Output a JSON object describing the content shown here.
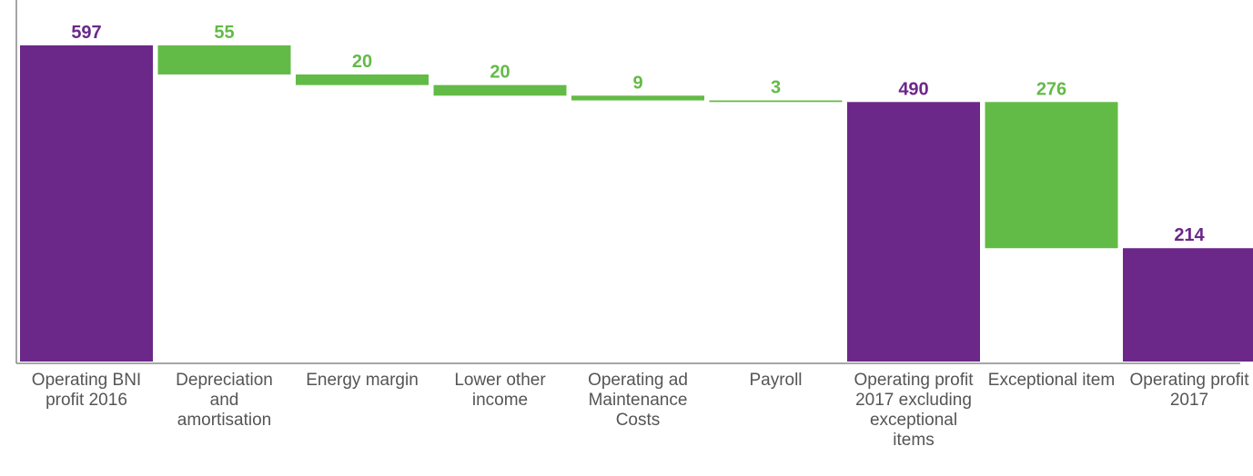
{
  "chart_data": {
    "type": "waterfall",
    "categories": [
      "Operating BNI profit 2016",
      "Depreciation and amortisation",
      "Energy margin",
      "Lower other income",
      "Operating ad Maintenance Costs",
      "Payroll",
      "Operating profit 2017 excluding exceptional items",
      "Exceptional item",
      "Operating profit 2017"
    ],
    "values": [
      597,
      55,
      20,
      20,
      9,
      3,
      490,
      276,
      214
    ],
    "measures": [
      "total",
      "decrease",
      "decrease",
      "decrease",
      "decrease",
      "decrease",
      "total",
      "decrease",
      "total"
    ],
    "colors": {
      "total": "#6b2889",
      "decrease": "#63bb47"
    },
    "ylim": [
      0,
      650
    ]
  }
}
